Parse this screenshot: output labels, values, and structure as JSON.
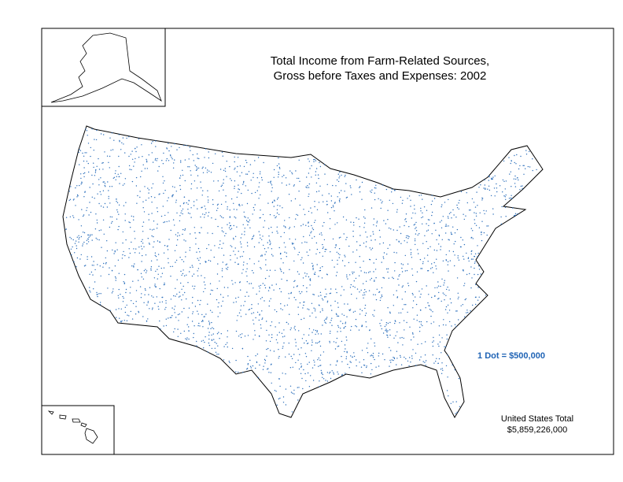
{
  "title": [
    "Total Income from Farm-Related Sources,",
    "Gross before Taxes and Expenses:  2002"
  ],
  "legend": "1 Dot = $500,000",
  "total": {
    "label": "United States Total",
    "value": "$5,859,226,000"
  }
}
